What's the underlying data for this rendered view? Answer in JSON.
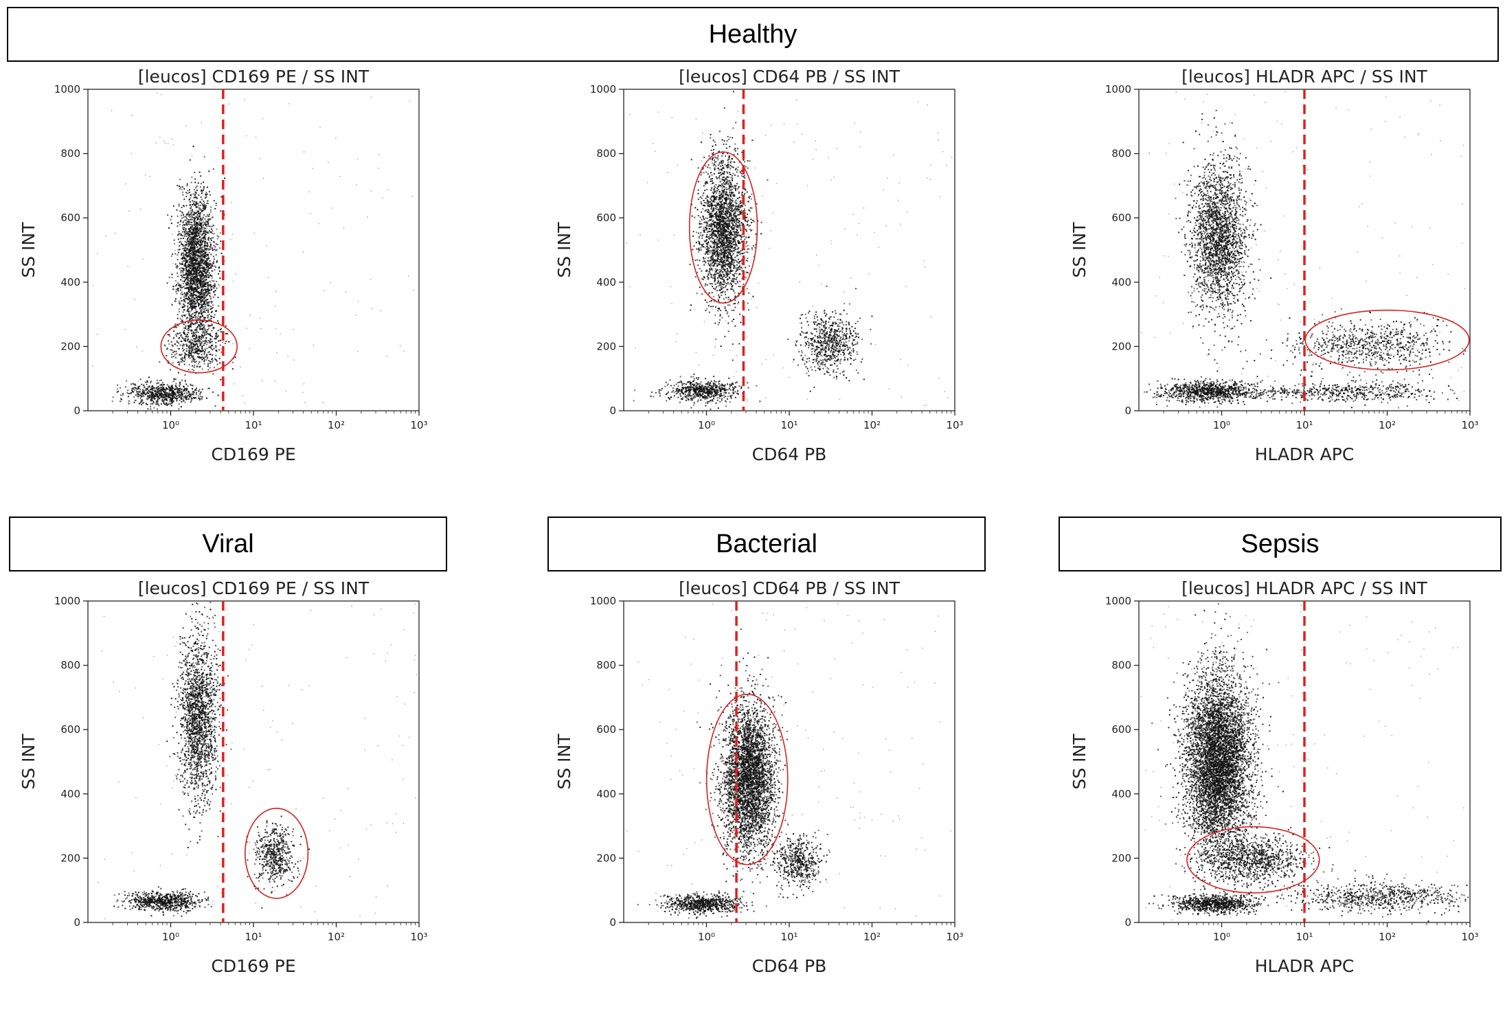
{
  "banners": {
    "healthy": "Healthy",
    "viral": "Viral",
    "bacterial": "Bacterial",
    "sepsis": "Sepsis"
  },
  "colors": {
    "gate_line": "#e0201c",
    "gate_ellipse": "#d42020",
    "events": "#111111"
  },
  "chart_data": [
    {
      "id": "healthy-cd169",
      "type": "scatter",
      "title": "[leucos] CD169 PE / SS INT",
      "xlabel": "CD169 PE",
      "ylabel": "SS INT",
      "xscale": "log",
      "xlim": [
        0.1,
        1000
      ],
      "ylim": [
        0,
        1000
      ],
      "xticks": [
        "10⁰",
        "10¹",
        "10²",
        "10³"
      ],
      "yticks": [
        "0",
        "200",
        "400",
        "600",
        "800",
        "1000"
      ],
      "gate_x": 4.3,
      "gate_ellipse": {
        "cx": 2.2,
        "cy": 200,
        "rx_decades": 0.46,
        "ry": 82
      },
      "populations": [
        {
          "cx": 2.0,
          "cy": 450,
          "sx_decades": 0.11,
          "sy": 115,
          "n": 2300
        },
        {
          "cx": 2.0,
          "cy": 200,
          "sx_decades": 0.17,
          "sy": 40,
          "n": 420
        },
        {
          "cx": 0.8,
          "cy": 55,
          "sx_decades": 0.22,
          "sy": 18,
          "n": 650
        }
      ]
    },
    {
      "id": "healthy-cd64",
      "type": "scatter",
      "title": "[leucos] CD64 PB / SS INT",
      "xlabel": "CD64 PB",
      "ylabel": "SS INT",
      "xscale": "log",
      "xlim": [
        0.1,
        1000
      ],
      "ylim": [
        0,
        1000
      ],
      "xticks": [
        "10⁰",
        "10¹",
        "10²",
        "10³"
      ],
      "yticks": [
        "0",
        "200",
        "400",
        "600",
        "800",
        "1000"
      ],
      "gate_x": 2.8,
      "gate_ellipse": {
        "cx": 1.6,
        "cy": 570,
        "rx_decades": 0.41,
        "ry": 235
      },
      "populations": [
        {
          "cx": 1.6,
          "cy": 560,
          "sx_decades": 0.14,
          "sy": 115,
          "n": 2300
        },
        {
          "cx": 30,
          "cy": 210,
          "sx_decades": 0.17,
          "sy": 48,
          "n": 650
        },
        {
          "cx": 0.9,
          "cy": 65,
          "sx_decades": 0.22,
          "sy": 16,
          "n": 600
        }
      ]
    },
    {
      "id": "healthy-hladr",
      "type": "scatter",
      "title": "[leucos] HLADR APC / SS INT",
      "xlabel": "HLADR APC",
      "ylabel": "SS INT",
      "xscale": "log",
      "xlim": [
        0.1,
        1000
      ],
      "ylim": [
        0,
        1000
      ],
      "xticks": [
        "10⁰",
        "10¹",
        "10²",
        "10³"
      ],
      "yticks": [
        "0",
        "200",
        "400",
        "600",
        "800",
        "1000"
      ],
      "gate_x": 10,
      "gate_ellipse": {
        "cx": 100,
        "cy": 220,
        "rx_decades": 0.99,
        "ry": 93
      },
      "populations": [
        {
          "cx": 0.9,
          "cy": 540,
          "sx_decades": 0.17,
          "sy": 120,
          "n": 2100
        },
        {
          "cx": 0.7,
          "cy": 62,
          "sx_decades": 0.3,
          "sy": 16,
          "n": 900
        },
        {
          "cx": 60,
          "cy": 205,
          "sx_decades": 0.45,
          "sy": 40,
          "n": 700
        },
        {
          "cx": 30,
          "cy": 60,
          "sx_decades": 0.6,
          "sy": 14,
          "n": 500
        }
      ]
    },
    {
      "id": "viral-cd169",
      "type": "scatter",
      "title": "[leucos] CD169 PE / SS INT",
      "xlabel": "CD169 PE",
      "ylabel": "SS INT",
      "xscale": "log",
      "xlim": [
        0.1,
        1000
      ],
      "ylim": [
        0,
        1000
      ],
      "xticks": [
        "10⁰",
        "10¹",
        "10²",
        "10³"
      ],
      "yticks": [
        "0",
        "200",
        "400",
        "600",
        "800",
        "1000"
      ],
      "gate_x": 4.3,
      "gate_ellipse": {
        "cx": 19,
        "cy": 215,
        "rx_decades": 0.38,
        "ry": 140
      },
      "populations": [
        {
          "cx": 2.1,
          "cy": 640,
          "sx_decades": 0.12,
          "sy": 135,
          "n": 1700
        },
        {
          "cx": 18,
          "cy": 215,
          "sx_decades": 0.12,
          "sy": 48,
          "n": 500
        },
        {
          "cx": 0.8,
          "cy": 68,
          "sx_decades": 0.22,
          "sy": 14,
          "n": 700
        }
      ]
    },
    {
      "id": "bacterial-cd64",
      "type": "scatter",
      "title": "[leucos] CD64 PB / SS INT",
      "xlabel": "CD64 PB",
      "ylabel": "SS INT",
      "xscale": "log",
      "xlim": [
        0.1,
        1000
      ],
      "ylim": [
        0,
        1000
      ],
      "xticks": [
        "10⁰",
        "10¹",
        "10²",
        "10³"
      ],
      "yticks": [
        "0",
        "200",
        "400",
        "600",
        "800",
        "1000"
      ],
      "gate_x": 2.3,
      "gate_ellipse": {
        "cx": 3.1,
        "cy": 445,
        "rx_decades": 0.49,
        "ry": 265
      },
      "populations": [
        {
          "cx": 3.2,
          "cy": 450,
          "sx_decades": 0.16,
          "sy": 115,
          "n": 3500
        },
        {
          "cx": 13,
          "cy": 190,
          "sx_decades": 0.14,
          "sy": 40,
          "n": 500
        },
        {
          "cx": 0.9,
          "cy": 60,
          "sx_decades": 0.22,
          "sy": 15,
          "n": 700
        }
      ]
    },
    {
      "id": "sepsis-hladr",
      "type": "scatter",
      "title": "[leucos] HLADR APC / SS INT",
      "xlabel": "HLADR APC",
      "ylabel": "SS INT",
      "xscale": "log",
      "xlim": [
        0.1,
        1000
      ],
      "ylim": [
        0,
        1000
      ],
      "xticks": [
        "10⁰",
        "10¹",
        "10²",
        "10³"
      ],
      "yticks": [
        "0",
        "200",
        "400",
        "600",
        "800",
        "1000"
      ],
      "gate_x": 10,
      "gate_ellipse": {
        "cx": 2.4,
        "cy": 195,
        "rx_decades": 0.8,
        "ry": 103
      },
      "populations": [
        {
          "cx": 0.9,
          "cy": 500,
          "sx_decades": 0.2,
          "sy": 140,
          "n": 5500
        },
        {
          "cx": 2.4,
          "cy": 195,
          "sx_decades": 0.3,
          "sy": 35,
          "n": 900
        },
        {
          "cx": 0.8,
          "cy": 60,
          "sx_decades": 0.25,
          "sy": 14,
          "n": 800
        },
        {
          "cx": 80,
          "cy": 80,
          "sx_decades": 0.5,
          "sy": 22,
          "n": 700
        }
      ]
    }
  ]
}
